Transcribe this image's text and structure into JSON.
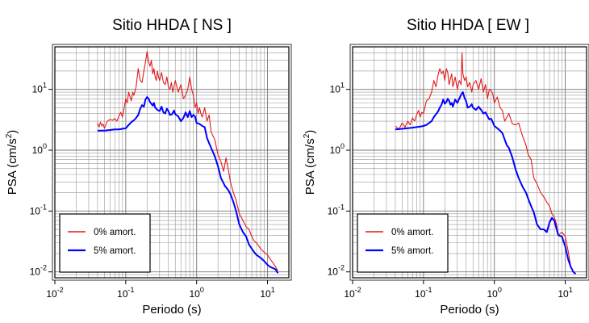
{
  "chart_data": [
    {
      "type": "line",
      "title": "Sitio HHDA [ NS ]",
      "xlabel": "Periodo (s)",
      "ylabel_main": "PSA (cm/s",
      "ylabel_sup": "2",
      "ylabel_end": ")",
      "xscale": "log",
      "yscale": "log",
      "xlim": [
        0.01,
        20
      ],
      "ylim": [
        0.008,
        50
      ],
      "grid": true,
      "legend_position": "lower-left",
      "x_ticks": [
        {
          "value": 0.01,
          "base": "10",
          "exp": "-2"
        },
        {
          "value": 0.1,
          "base": "10",
          "exp": "-1"
        },
        {
          "value": 1,
          "base": "10",
          "exp": "0"
        },
        {
          "value": 10,
          "base": "10",
          "exp": "1"
        }
      ],
      "y_ticks": [
        {
          "value": 0.01,
          "base": "10",
          "exp": "-2"
        },
        {
          "value": 0.1,
          "base": "10",
          "exp": "-1"
        },
        {
          "value": 1,
          "base": "10",
          "exp": "0"
        },
        {
          "value": 10,
          "base": "10",
          "exp": "1"
        }
      ],
      "series": [
        {
          "name": "0% amort.",
          "color": "#e41a1c",
          "x": [
            0.04,
            0.042,
            0.044,
            0.046,
            0.048,
            0.05,
            0.055,
            0.06,
            0.065,
            0.07,
            0.075,
            0.08,
            0.085,
            0.09,
            0.095,
            0.1,
            0.105,
            0.11,
            0.115,
            0.12,
            0.125,
            0.13,
            0.14,
            0.15,
            0.16,
            0.17,
            0.18,
            0.19,
            0.2,
            0.21,
            0.22,
            0.23,
            0.24,
            0.25,
            0.26,
            0.27,
            0.28,
            0.29,
            0.3,
            0.32,
            0.34,
            0.36,
            0.38,
            0.4,
            0.42,
            0.44,
            0.46,
            0.48,
            0.5,
            0.55,
            0.6,
            0.65,
            0.7,
            0.75,
            0.8,
            0.85,
            0.9,
            0.95,
            1.0,
            1.05,
            1.1,
            1.15,
            1.2,
            1.3,
            1.4,
            1.5,
            1.6,
            1.8,
            2.0,
            2.2,
            2.4,
            2.6,
            2.8,
            3.0,
            3.3,
            3.6,
            4.0,
            4.5,
            5.0,
            5.5,
            6.0,
            6.5,
            7.0,
            8.0,
            9.0,
            10.0,
            11.0,
            12.0,
            13.0,
            14.0
          ],
          "y": [
            2.8,
            2.4,
            2.9,
            2.5,
            2.7,
            2.3,
            3.0,
            3.2,
            3.1,
            3.3,
            3.0,
            3.6,
            4.2,
            3.5,
            5.0,
            7.0,
            6.0,
            9.0,
            7.5,
            6.5,
            9.0,
            8.0,
            11.0,
            22.0,
            14.0,
            13.0,
            20.0,
            28.0,
            42.0,
            28.0,
            24.0,
            30.0,
            18.0,
            22.0,
            16.0,
            14.0,
            20.0,
            16.0,
            14.0,
            19.0,
            13.0,
            12.0,
            16.0,
            11.0,
            10.0,
            13.0,
            9.0,
            11.0,
            14.0,
            9.0,
            12.0,
            7.0,
            8.0,
            10.0,
            16.0,
            10.0,
            8.0,
            5.0,
            6.0,
            4.0,
            5.0,
            4.0,
            3.5,
            5.0,
            3.0,
            3.8,
            2.0,
            1.5,
            0.85,
            0.65,
            0.45,
            0.75,
            0.48,
            0.3,
            0.2,
            0.15,
            0.09,
            0.07,
            0.055,
            0.05,
            0.038,
            0.032,
            0.03,
            0.024,
            0.021,
            0.019,
            0.016,
            0.014,
            0.012,
            0.0105
          ]
        },
        {
          "name": "5% amort.",
          "color": "#0000ff",
          "x": [
            0.04,
            0.05,
            0.06,
            0.07,
            0.08,
            0.09,
            0.1,
            0.11,
            0.12,
            0.13,
            0.14,
            0.15,
            0.16,
            0.17,
            0.18,
            0.19,
            0.2,
            0.21,
            0.22,
            0.23,
            0.24,
            0.25,
            0.26,
            0.28,
            0.3,
            0.32,
            0.34,
            0.36,
            0.38,
            0.4,
            0.42,
            0.45,
            0.48,
            0.5,
            0.55,
            0.6,
            0.65,
            0.7,
            0.75,
            0.8,
            0.85,
            0.9,
            0.95,
            1.0,
            1.1,
            1.2,
            1.3,
            1.4,
            1.5,
            1.6,
            1.8,
            2.0,
            2.2,
            2.5,
            2.8,
            3.0,
            3.3,
            3.6,
            4.0,
            4.5,
            5.0,
            5.5,
            6.0,
            6.5,
            7.0,
            8.0,
            9.0,
            10.0,
            11.0,
            12.0,
            13.0,
            14.0
          ],
          "y": [
            2.1,
            2.1,
            2.15,
            2.2,
            2.2,
            2.25,
            2.3,
            2.6,
            2.9,
            3.1,
            3.4,
            3.8,
            4.8,
            5.5,
            5.2,
            6.8,
            7.5,
            7.0,
            6.2,
            5.8,
            5.4,
            6.0,
            5.0,
            4.6,
            4.4,
            5.2,
            4.2,
            4.0,
            4.8,
            4.4,
            3.8,
            3.9,
            4.5,
            3.9,
            3.6,
            3.0,
            3.4,
            4.2,
            3.5,
            4.4,
            3.5,
            3.8,
            3.6,
            2.8,
            2.7,
            2.5,
            2.4,
            1.6,
            1.3,
            1.1,
            0.8,
            0.55,
            0.35,
            0.26,
            0.22,
            0.19,
            0.14,
            0.1,
            0.06,
            0.045,
            0.038,
            0.028,
            0.024,
            0.021,
            0.019,
            0.017,
            0.015,
            0.013,
            0.012,
            0.0115,
            0.011,
            0.0095
          ]
        }
      ]
    },
    {
      "type": "line",
      "title": "Sitio HHDA [ EW ]",
      "xlabel": "Periodo (s)",
      "ylabel_main": "PSA (cm/s",
      "ylabel_sup": "2",
      "ylabel_end": ")",
      "xscale": "log",
      "yscale": "log",
      "xlim": [
        0.01,
        20
      ],
      "ylim": [
        0.008,
        50
      ],
      "grid": true,
      "legend_position": "lower-left",
      "x_ticks": [
        {
          "value": 0.01,
          "base": "10",
          "exp": "-2"
        },
        {
          "value": 0.1,
          "base": "10",
          "exp": "-1"
        },
        {
          "value": 1,
          "base": "10",
          "exp": "0"
        },
        {
          "value": 10,
          "base": "10",
          "exp": "1"
        }
      ],
      "y_ticks": [
        {
          "value": 0.01,
          "base": "10",
          "exp": "-2"
        },
        {
          "value": 0.1,
          "base": "10",
          "exp": "-1"
        },
        {
          "value": 1,
          "base": "10",
          "exp": "0"
        },
        {
          "value": 10,
          "base": "10",
          "exp": "1"
        }
      ],
      "series": [
        {
          "name": "0% amort.",
          "color": "#e41a1c",
          "x": [
            0.04,
            0.045,
            0.05,
            0.055,
            0.06,
            0.065,
            0.07,
            0.075,
            0.08,
            0.085,
            0.09,
            0.095,
            0.1,
            0.11,
            0.12,
            0.13,
            0.14,
            0.15,
            0.16,
            0.17,
            0.18,
            0.19,
            0.2,
            0.21,
            0.22,
            0.23,
            0.24,
            0.25,
            0.26,
            0.28,
            0.3,
            0.32,
            0.34,
            0.35,
            0.36,
            0.38,
            0.4,
            0.42,
            0.45,
            0.48,
            0.5,
            0.55,
            0.6,
            0.65,
            0.7,
            0.75,
            0.8,
            0.85,
            0.9,
            0.95,
            1.0,
            1.1,
            1.2,
            1.3,
            1.4,
            1.5,
            1.6,
            1.8,
            2.0,
            2.2,
            2.5,
            2.8,
            3.0,
            3.3,
            3.6,
            4.0,
            4.5,
            5.0,
            5.5,
            6.0,
            6.5,
            7.0,
            7.5,
            8.0,
            9.0,
            10.0,
            11.0,
            12.0,
            13.0,
            14.0
          ],
          "y": [
            2.5,
            2.2,
            2.8,
            2.4,
            3.0,
            2.6,
            3.4,
            3.0,
            3.8,
            4.5,
            3.5,
            4.2,
            4.0,
            6.5,
            7.0,
            9.0,
            14.0,
            11.0,
            17.0,
            22.0,
            18.0,
            20.0,
            14.0,
            22.0,
            19.0,
            12.0,
            15.0,
            18.0,
            11.0,
            16.0,
            10.0,
            14.0,
            12.0,
            40.0,
            18.0,
            14.0,
            16.0,
            11.0,
            13.0,
            9.0,
            12.0,
            14.0,
            10.0,
            15.0,
            9.0,
            12.0,
            7.0,
            10.0,
            9.5,
            8.5,
            6.0,
            7.5,
            5.0,
            4.5,
            3.0,
            3.5,
            4.0,
            2.7,
            2.6,
            2.8,
            1.7,
            1.2,
            0.85,
            0.7,
            0.35,
            0.28,
            0.2,
            0.17,
            0.14,
            0.12,
            0.09,
            0.08,
            0.062,
            0.04,
            0.045,
            0.038,
            0.022,
            0.012,
            0.01,
            0.0095
          ]
        },
        {
          "name": "5% amort.",
          "color": "#0000ff",
          "x": [
            0.04,
            0.05,
            0.06,
            0.07,
            0.08,
            0.09,
            0.1,
            0.11,
            0.12,
            0.13,
            0.14,
            0.15,
            0.16,
            0.17,
            0.18,
            0.19,
            0.2,
            0.21,
            0.22,
            0.23,
            0.24,
            0.25,
            0.26,
            0.28,
            0.3,
            0.32,
            0.34,
            0.36,
            0.38,
            0.4,
            0.42,
            0.45,
            0.48,
            0.5,
            0.55,
            0.6,
            0.65,
            0.7,
            0.75,
            0.8,
            0.85,
            0.9,
            0.95,
            1.0,
            1.1,
            1.2,
            1.3,
            1.4,
            1.5,
            1.6,
            1.8,
            2.0,
            2.2,
            2.5,
            2.8,
            3.0,
            3.3,
            3.6,
            4.0,
            4.5,
            5.0,
            5.5,
            6.0,
            6.5,
            7.0,
            8.0,
            9.0,
            10.0,
            11.0,
            12.0,
            13.0,
            14.0
          ],
          "y": [
            2.2,
            2.25,
            2.3,
            2.35,
            2.4,
            2.45,
            2.5,
            2.6,
            2.8,
            3.0,
            3.5,
            3.9,
            4.3,
            5.0,
            5.6,
            6.8,
            5.8,
            6.2,
            7.0,
            6.5,
            5.6,
            6.0,
            5.2,
            6.8,
            6.0,
            7.0,
            8.2,
            9.0,
            7.2,
            6.4,
            5.0,
            5.2,
            5.7,
            5.0,
            4.6,
            5.2,
            4.6,
            4.0,
            4.2,
            3.6,
            3.2,
            3.3,
            2.9,
            2.5,
            2.3,
            2.1,
            1.9,
            1.5,
            1.2,
            1.1,
            0.75,
            0.48,
            0.35,
            0.25,
            0.2,
            0.16,
            0.12,
            0.095,
            0.06,
            0.05,
            0.05,
            0.045,
            0.065,
            0.077,
            0.07,
            0.04,
            0.038,
            0.026,
            0.016,
            0.012,
            0.01,
            0.0092
          ]
        }
      ]
    }
  ]
}
